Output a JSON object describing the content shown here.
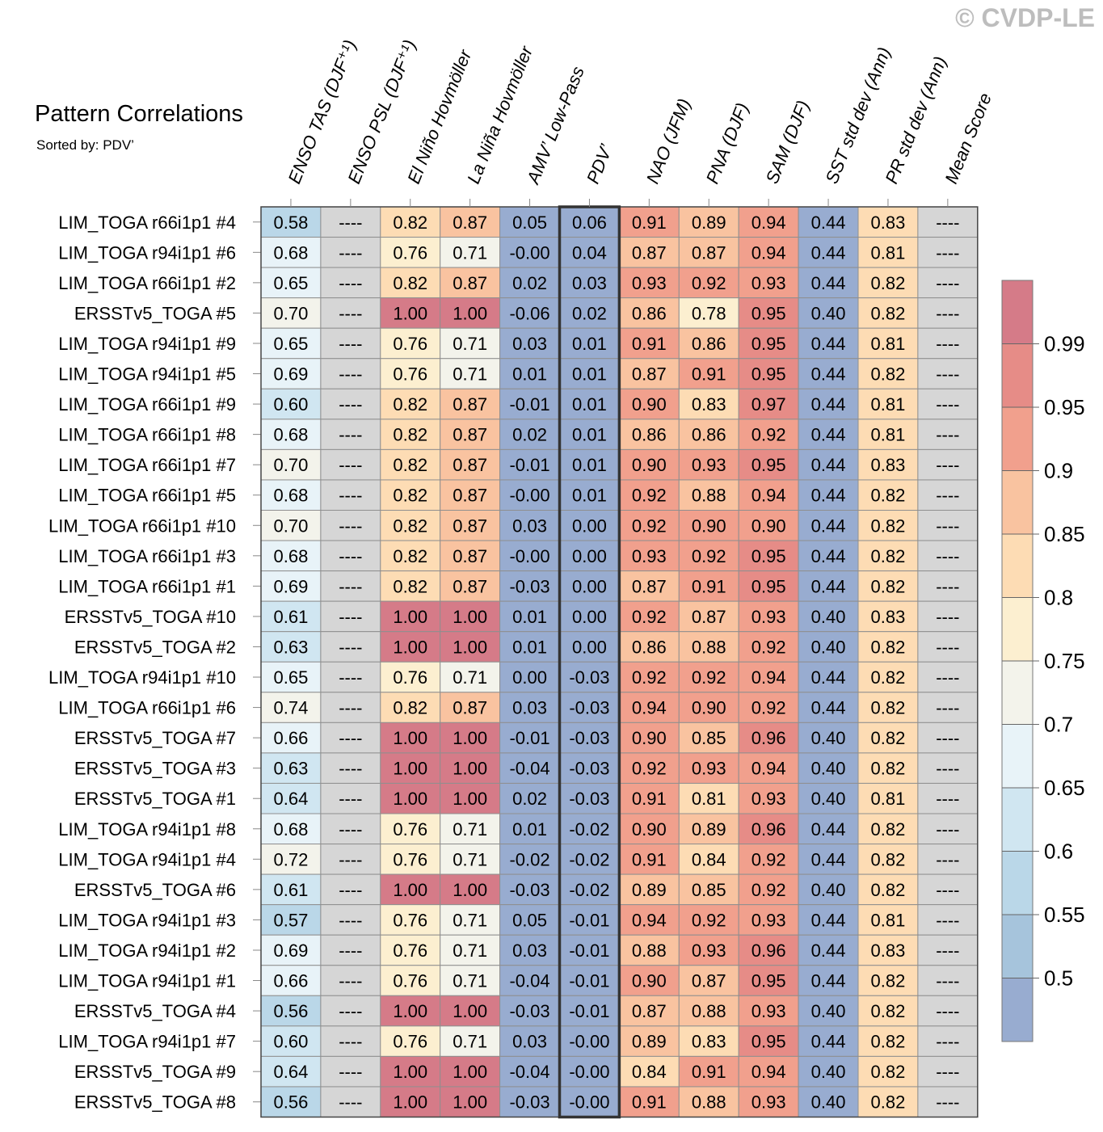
{
  "title": "Pattern Correlations",
  "subtitle": "Sorted by: PDV’",
  "copyright": "© CVDP-LE",
  "chart_data": {
    "type": "heatmap",
    "title": "Pattern Correlations",
    "subtitle": "Sorted by: PDV’",
    "highlighted_column": "PDV’",
    "missing_label": "----",
    "columns": [
      "ENSO TAS (DJF⁺¹)",
      "ENSO PSL (DJF⁺¹)",
      "El Niño Hovmöller",
      "La Niña Hovmöller",
      "AMV’ Low-Pass",
      "PDV’",
      "NAO (JFM)",
      "PNA (DJF)",
      "SAM (DJF)",
      "SST std dev (Ann)",
      "PR std dev (Ann)",
      "Mean Score"
    ],
    "rows": [
      {
        "name": "LIM_TOGA r66i1p1 #4",
        "values": [
          "0.58",
          "----",
          "0.82",
          "0.87",
          "0.05",
          "0.06",
          "0.91",
          "0.89",
          "0.94",
          "0.44",
          "0.83",
          "----"
        ]
      },
      {
        "name": "LIM_TOGA r94i1p1 #6",
        "values": [
          "0.68",
          "----",
          "0.76",
          "0.71",
          "-0.00",
          "0.04",
          "0.87",
          "0.87",
          "0.94",
          "0.44",
          "0.81",
          "----"
        ]
      },
      {
        "name": "LIM_TOGA r66i1p1 #2",
        "values": [
          "0.65",
          "----",
          "0.82",
          "0.87",
          "0.02",
          "0.03",
          "0.93",
          "0.92",
          "0.93",
          "0.44",
          "0.82",
          "----"
        ]
      },
      {
        "name": "ERSSTv5_TOGA #5",
        "values": [
          "0.70",
          "----",
          "1.00",
          "1.00",
          "-0.06",
          "0.02",
          "0.86",
          "0.78",
          "0.95",
          "0.40",
          "0.82",
          "----"
        ]
      },
      {
        "name": "LIM_TOGA r94i1p1 #9",
        "values": [
          "0.65",
          "----",
          "0.76",
          "0.71",
          "0.03",
          "0.01",
          "0.91",
          "0.86",
          "0.95",
          "0.44",
          "0.81",
          "----"
        ]
      },
      {
        "name": "LIM_TOGA r94i1p1 #5",
        "values": [
          "0.69",
          "----",
          "0.76",
          "0.71",
          "0.01",
          "0.01",
          "0.87",
          "0.91",
          "0.95",
          "0.44",
          "0.82",
          "----"
        ]
      },
      {
        "name": "LIM_TOGA r66i1p1 #9",
        "values": [
          "0.60",
          "----",
          "0.82",
          "0.87",
          "-0.01",
          "0.01",
          "0.90",
          "0.83",
          "0.97",
          "0.44",
          "0.81",
          "----"
        ]
      },
      {
        "name": "LIM_TOGA r66i1p1 #8",
        "values": [
          "0.68",
          "----",
          "0.82",
          "0.87",
          "0.02",
          "0.01",
          "0.86",
          "0.86",
          "0.92",
          "0.44",
          "0.81",
          "----"
        ]
      },
      {
        "name": "LIM_TOGA r66i1p1 #7",
        "values": [
          "0.70",
          "----",
          "0.82",
          "0.87",
          "-0.01",
          "0.01",
          "0.90",
          "0.93",
          "0.95",
          "0.44",
          "0.83",
          "----"
        ]
      },
      {
        "name": "LIM_TOGA r66i1p1 #5",
        "values": [
          "0.68",
          "----",
          "0.82",
          "0.87",
          "-0.00",
          "0.01",
          "0.92",
          "0.88",
          "0.94",
          "0.44",
          "0.82",
          "----"
        ]
      },
      {
        "name": "LIM_TOGA r66i1p1 #10",
        "values": [
          "0.70",
          "----",
          "0.82",
          "0.87",
          "0.03",
          "0.00",
          "0.92",
          "0.90",
          "0.90",
          "0.44",
          "0.82",
          "----"
        ]
      },
      {
        "name": "LIM_TOGA r66i1p1 #3",
        "values": [
          "0.68",
          "----",
          "0.82",
          "0.87",
          "-0.00",
          "0.00",
          "0.93",
          "0.92",
          "0.95",
          "0.44",
          "0.82",
          "----"
        ]
      },
      {
        "name": "LIM_TOGA r66i1p1 #1",
        "values": [
          "0.69",
          "----",
          "0.82",
          "0.87",
          "-0.03",
          "0.00",
          "0.87",
          "0.91",
          "0.95",
          "0.44",
          "0.82",
          "----"
        ]
      },
      {
        "name": "ERSSTv5_TOGA #10",
        "values": [
          "0.61",
          "----",
          "1.00",
          "1.00",
          "0.01",
          "0.00",
          "0.92",
          "0.87",
          "0.93",
          "0.40",
          "0.83",
          "----"
        ]
      },
      {
        "name": "ERSSTv5_TOGA #2",
        "values": [
          "0.63",
          "----",
          "1.00",
          "1.00",
          "0.01",
          "0.00",
          "0.86",
          "0.88",
          "0.92",
          "0.40",
          "0.82",
          "----"
        ]
      },
      {
        "name": "LIM_TOGA r94i1p1 #10",
        "values": [
          "0.65",
          "----",
          "0.76",
          "0.71",
          "0.00",
          "-0.03",
          "0.92",
          "0.92",
          "0.94",
          "0.44",
          "0.82",
          "----"
        ]
      },
      {
        "name": "LIM_TOGA r66i1p1 #6",
        "values": [
          "0.74",
          "----",
          "0.82",
          "0.87",
          "0.03",
          "-0.03",
          "0.94",
          "0.90",
          "0.92",
          "0.44",
          "0.82",
          "----"
        ]
      },
      {
        "name": "ERSSTv5_TOGA #7",
        "values": [
          "0.66",
          "----",
          "1.00",
          "1.00",
          "-0.01",
          "-0.03",
          "0.90",
          "0.85",
          "0.96",
          "0.40",
          "0.82",
          "----"
        ]
      },
      {
        "name": "ERSSTv5_TOGA #3",
        "values": [
          "0.63",
          "----",
          "1.00",
          "1.00",
          "-0.04",
          "-0.03",
          "0.92",
          "0.93",
          "0.94",
          "0.40",
          "0.82",
          "----"
        ]
      },
      {
        "name": "ERSSTv5_TOGA #1",
        "values": [
          "0.64",
          "----",
          "1.00",
          "1.00",
          "0.02",
          "-0.03",
          "0.91",
          "0.81",
          "0.93",
          "0.40",
          "0.81",
          "----"
        ]
      },
      {
        "name": "LIM_TOGA r94i1p1 #8",
        "values": [
          "0.68",
          "----",
          "0.76",
          "0.71",
          "0.01",
          "-0.02",
          "0.90",
          "0.89",
          "0.96",
          "0.44",
          "0.82",
          "----"
        ]
      },
      {
        "name": "LIM_TOGA r94i1p1 #4",
        "values": [
          "0.72",
          "----",
          "0.76",
          "0.71",
          "-0.02",
          "-0.02",
          "0.91",
          "0.84",
          "0.92",
          "0.44",
          "0.82",
          "----"
        ]
      },
      {
        "name": "ERSSTv5_TOGA #6",
        "values": [
          "0.61",
          "----",
          "1.00",
          "1.00",
          "-0.03",
          "-0.02",
          "0.89",
          "0.85",
          "0.92",
          "0.40",
          "0.82",
          "----"
        ]
      },
      {
        "name": "LIM_TOGA r94i1p1 #3",
        "values": [
          "0.57",
          "----",
          "0.76",
          "0.71",
          "0.05",
          "-0.01",
          "0.94",
          "0.92",
          "0.93",
          "0.44",
          "0.81",
          "----"
        ]
      },
      {
        "name": "LIM_TOGA r94i1p1 #2",
        "values": [
          "0.69",
          "----",
          "0.76",
          "0.71",
          "0.03",
          "-0.01",
          "0.88",
          "0.93",
          "0.96",
          "0.44",
          "0.83",
          "----"
        ]
      },
      {
        "name": "LIM_TOGA r94i1p1 #1",
        "values": [
          "0.66",
          "----",
          "0.76",
          "0.71",
          "-0.04",
          "-0.01",
          "0.90",
          "0.87",
          "0.95",
          "0.44",
          "0.82",
          "----"
        ]
      },
      {
        "name": "ERSSTv5_TOGA #4",
        "values": [
          "0.56",
          "----",
          "1.00",
          "1.00",
          "-0.03",
          "-0.01",
          "0.87",
          "0.88",
          "0.93",
          "0.40",
          "0.82",
          "----"
        ]
      },
      {
        "name": "LIM_TOGA r94i1p1 #7",
        "values": [
          "0.60",
          "----",
          "0.76",
          "0.71",
          "0.03",
          "-0.00",
          "0.89",
          "0.83",
          "0.95",
          "0.44",
          "0.82",
          "----"
        ]
      },
      {
        "name": "ERSSTv5_TOGA #9",
        "values": [
          "0.64",
          "----",
          "1.00",
          "1.00",
          "-0.04",
          "-0.00",
          "0.84",
          "0.91",
          "0.94",
          "0.40",
          "0.82",
          "----"
        ]
      },
      {
        "name": "ERSSTv5_TOGA #8",
        "values": [
          "0.56",
          "----",
          "1.00",
          "1.00",
          "-0.03",
          "-0.00",
          "0.91",
          "0.88",
          "0.93",
          "0.40",
          "0.82",
          "----"
        ]
      }
    ],
    "colorbar": {
      "levels": [
        0.5,
        0.55,
        0.6,
        0.65,
        0.7,
        0.75,
        0.8,
        0.85,
        0.9,
        0.95,
        0.99
      ],
      "tick_labels": [
        "0.5",
        "0.55",
        "0.6",
        "0.65",
        "0.7",
        "0.75",
        "0.8",
        "0.85",
        "0.9",
        "0.95",
        "0.99"
      ],
      "colors": [
        "#98acd0",
        "#a6c4dc",
        "#bad7e8",
        "#d0e6f1",
        "#e8f3f8",
        "#f3f3eb",
        "#fcefd0",
        "#fddcb4",
        "#f9c3a0",
        "#f1a08d",
        "#e68c87",
        "#d57b88"
      ],
      "missing_color": "#d6d6d6"
    }
  }
}
